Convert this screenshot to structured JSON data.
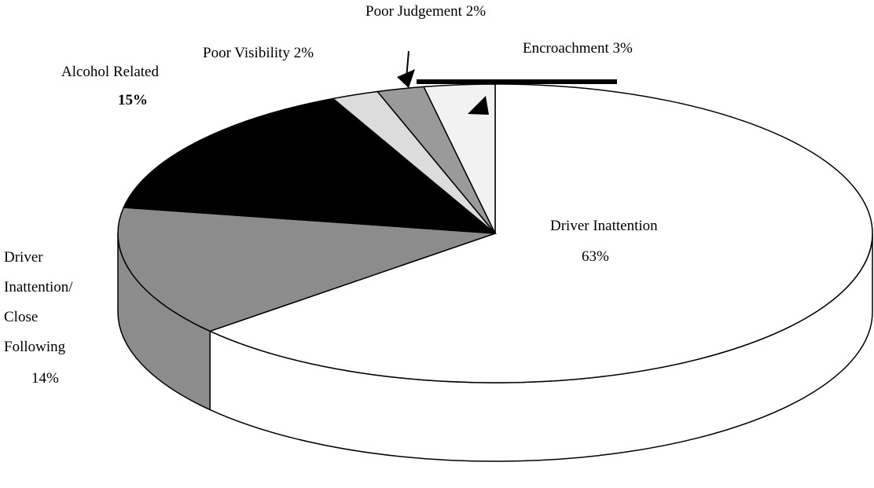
{
  "chart_data": {
    "type": "pie3d",
    "categories": [
      "Driver Inattention",
      "Driver Inattention/ Close Following",
      "Alcohol Related",
      "Poor Visibility",
      "Poor Judgement",
      "Encroachment"
    ],
    "values": [
      63,
      14,
      15,
      2,
      2,
      3
    ],
    "value_labels": [
      "63%",
      "14%",
      "15%",
      "2%",
      "2%",
      "3%"
    ],
    "colors": [
      "#ffffff",
      "#8c8c8c",
      "#000000",
      "#dcdcdc",
      "#9a9a9a",
      "#f2f2f2"
    ]
  }
}
